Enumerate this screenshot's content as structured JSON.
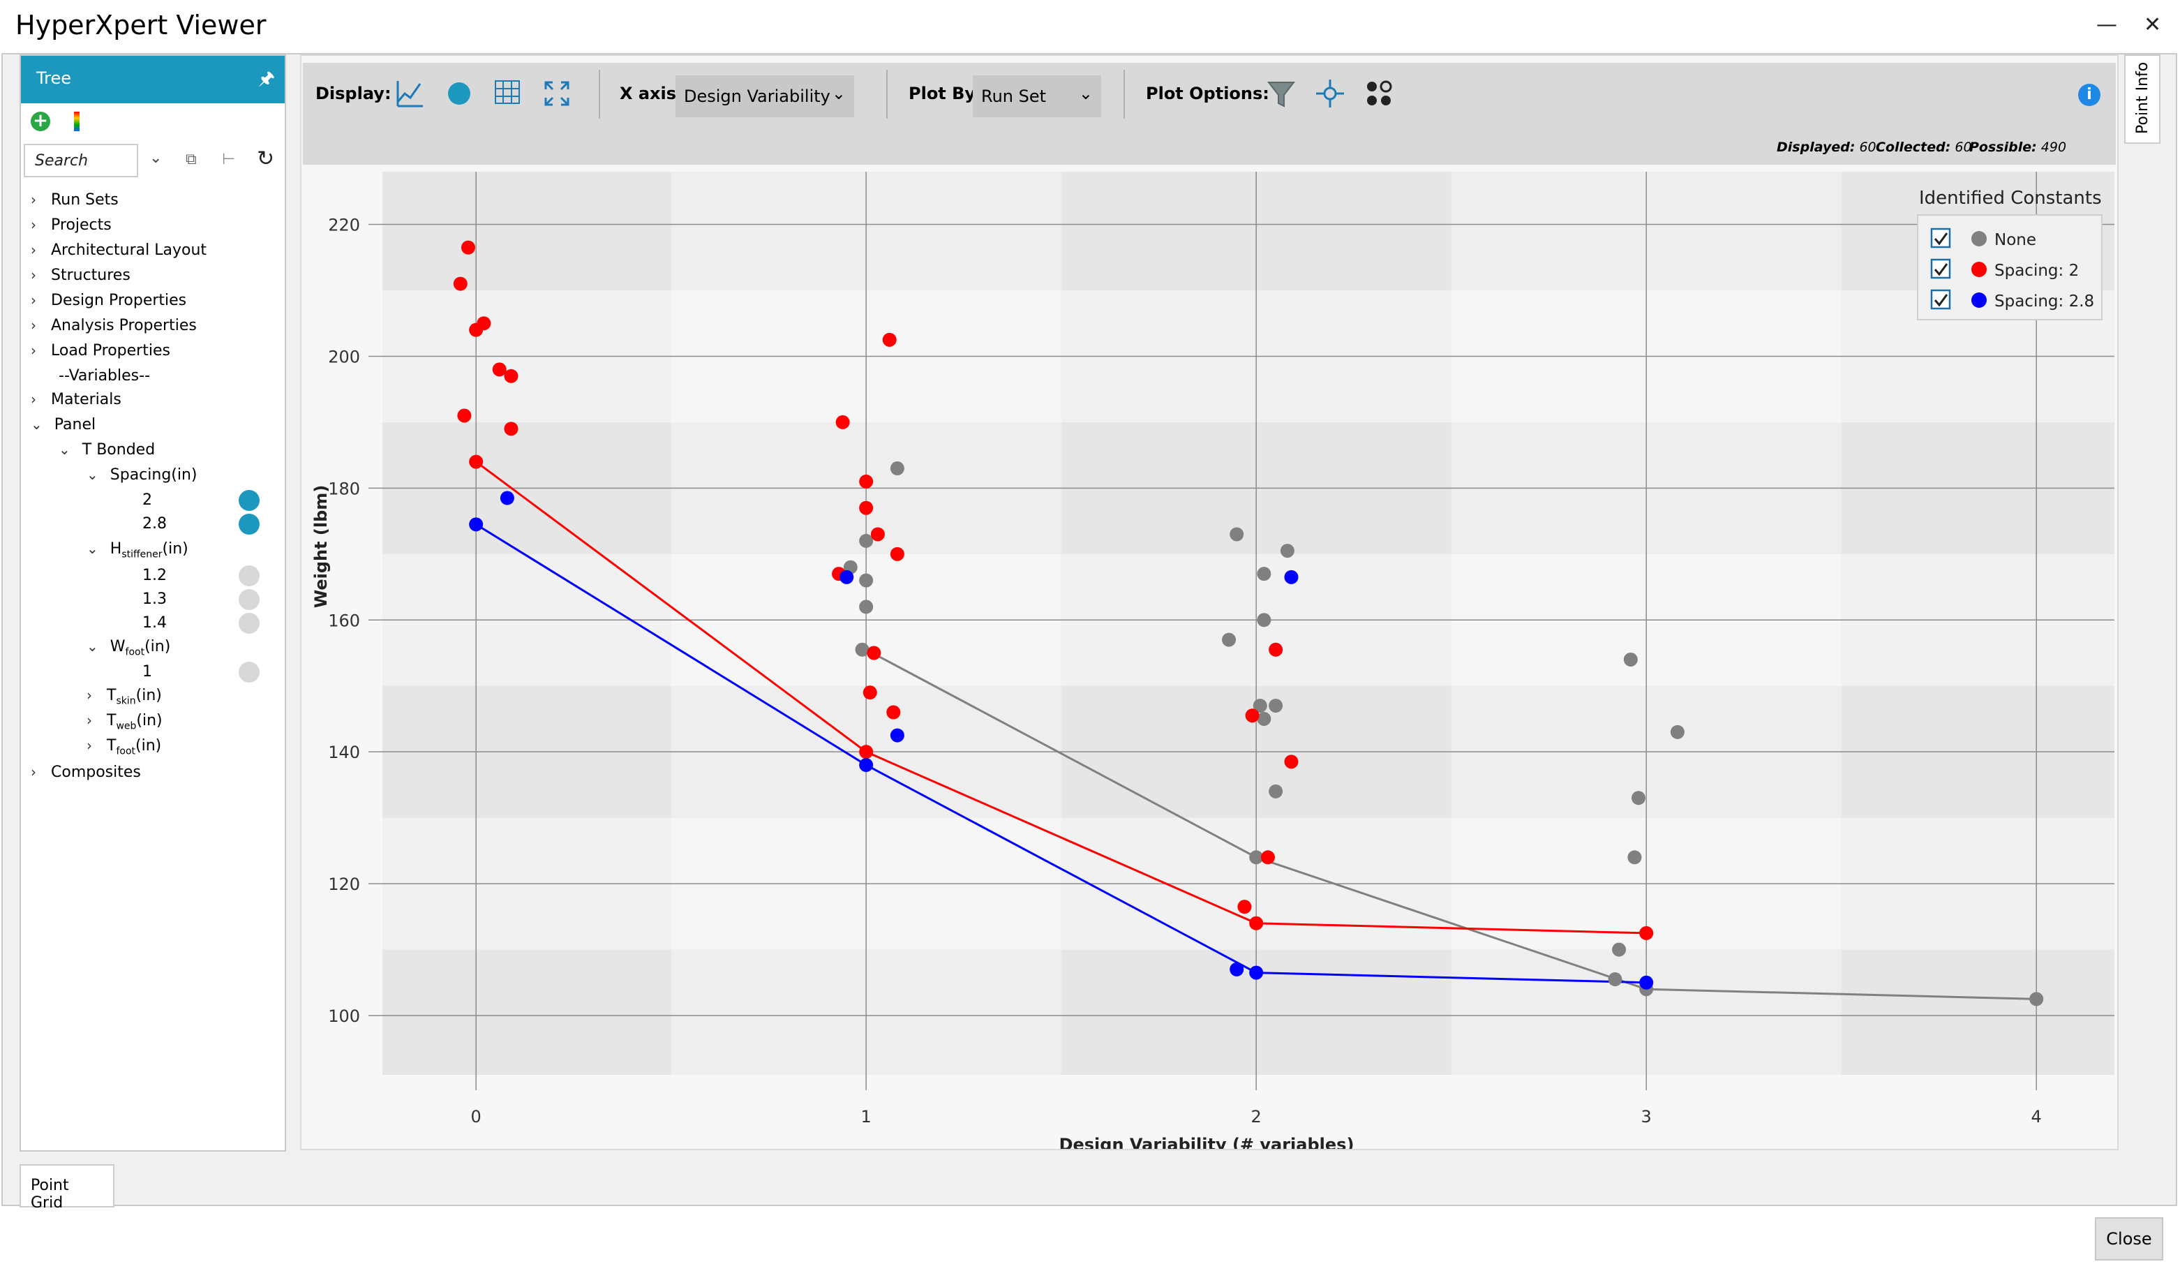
{
  "window": {
    "title": "HyperXpert Viewer",
    "minimize_icon": "minimize-icon",
    "close_icon": "close-x-icon"
  },
  "tree": {
    "title": "Tree",
    "search_placeholder": "Search",
    "items": [
      {
        "label": "Run Sets"
      },
      {
        "label": "Projects"
      },
      {
        "label": "Architectural Layout"
      },
      {
        "label": "Structures"
      },
      {
        "label": "Design Properties"
      },
      {
        "label": "Analysis Properties"
      },
      {
        "label": "Load Properties"
      },
      {
        "label": "--Variables--"
      },
      {
        "label": "Materials"
      },
      {
        "label": "Panel"
      },
      {
        "label": "T Bonded"
      },
      {
        "label": "Spacing(in)"
      },
      {
        "label": "2"
      },
      {
        "label": "2.8"
      },
      {
        "label": "H",
        "sub": "stiffener",
        "suffix": "(in)"
      },
      {
        "label": "1.2"
      },
      {
        "label": "1.3"
      },
      {
        "label": "1.4"
      },
      {
        "label": "W",
        "sub": "foot",
        "suffix": "(in)"
      },
      {
        "label": "1"
      },
      {
        "label": "T",
        "sub": "skin",
        "suffix": "(in)"
      },
      {
        "label": "T",
        "sub": "web",
        "suffix": "(in)"
      },
      {
        "label": "T",
        "sub": "foot",
        "suffix": "(in)"
      },
      {
        "label": "Composites"
      }
    ],
    "dot_colors": {
      "selected": "#1c98bf",
      "unselected": "#d8d8d8"
    }
  },
  "toolbar": {
    "display_label": "Display:",
    "x_axis_label": "X axis:",
    "x_axis_value": "Design Variability",
    "plot_by_label": "Plot By:",
    "plot_by_value": "Run Set",
    "plot_options_label": "Plot Options:",
    "displayed_label": "Displayed:",
    "displayed_value": "60",
    "collected_label": "Collected:",
    "collected_value": "60",
    "possible_label": "Possible:",
    "possible_value": "490"
  },
  "legend": {
    "title": "Identified Constants",
    "entries": [
      {
        "label": "None",
        "color": "#808080"
      },
      {
        "label": "Spacing: 2",
        "color": "#ff0000"
      },
      {
        "label": "Spacing: 2.8",
        "color": "#0000ff"
      }
    ]
  },
  "chart_data": {
    "type": "scatter",
    "xlabel": "Design Variability (# variables)",
    "ylabel": "Weight (lbm)",
    "xlim": [
      -0.24,
      4.2
    ],
    "ylim": [
      91,
      228
    ],
    "xticks": [
      0,
      1,
      2,
      3,
      4
    ],
    "yticks": [
      100,
      120,
      140,
      160,
      180,
      200,
      220
    ],
    "legend_position": "top-right",
    "series": [
      {
        "name": "None",
        "color": "#808080",
        "points": [
          [
            0.96,
            168
          ],
          [
            1.0,
            172
          ],
          [
            1.0,
            166
          ],
          [
            1.0,
            162
          ],
          [
            1.08,
            183
          ],
          [
            0.99,
            155.5
          ],
          [
            1.93,
            157
          ],
          [
            1.95,
            173
          ],
          [
            2.02,
            167
          ],
          [
            2.02,
            160
          ],
          [
            2.08,
            170.5
          ],
          [
            2.01,
            147
          ],
          [
            2.02,
            145
          ],
          [
            2.05,
            147
          ],
          [
            2.05,
            134
          ],
          [
            2.0,
            124
          ],
          [
            2.96,
            154
          ],
          [
            2.98,
            133
          ],
          [
            3.08,
            143
          ],
          [
            2.97,
            124
          ],
          [
            2.93,
            110
          ],
          [
            2.92,
            105.5
          ],
          [
            3.0,
            104
          ],
          [
            4.0,
            102.5
          ]
        ],
        "frontier": [
          [
            1.0,
            155.5
          ],
          [
            2.0,
            124
          ],
          [
            3.0,
            104
          ],
          [
            4.0,
            102.5
          ]
        ]
      },
      {
        "name": "Spacing: 2",
        "color": "#ff0000",
        "points": [
          [
            -0.02,
            216.5
          ],
          [
            -0.04,
            211
          ],
          [
            0.02,
            205
          ],
          [
            0.0,
            204
          ],
          [
            0.06,
            198
          ],
          [
            0.09,
            197
          ],
          [
            -0.03,
            191
          ],
          [
            0.09,
            189
          ],
          [
            0.0,
            184
          ],
          [
            1.06,
            202.5
          ],
          [
            0.94,
            190
          ],
          [
            1.0,
            181
          ],
          [
            1.0,
            177
          ],
          [
            1.03,
            173
          ],
          [
            1.08,
            170
          ],
          [
            0.93,
            167
          ],
          [
            1.02,
            155
          ],
          [
            1.01,
            149
          ],
          [
            1.07,
            146
          ],
          [
            1.0,
            140
          ],
          [
            2.05,
            155.5
          ],
          [
            1.99,
            145.5
          ],
          [
            2.09,
            138.5
          ],
          [
            2.03,
            124
          ],
          [
            1.97,
            116.5
          ],
          [
            2.0,
            114
          ],
          [
            3.0,
            112.5
          ]
        ],
        "frontier": [
          [
            0.0,
            184
          ],
          [
            1.0,
            140
          ],
          [
            2.0,
            114
          ],
          [
            3.0,
            112.5
          ]
        ]
      },
      {
        "name": "Spacing: 2.8",
        "color": "#0000ff",
        "points": [
          [
            0.08,
            178.5
          ],
          [
            0.0,
            174.5
          ],
          [
            0.95,
            166.5
          ],
          [
            1.08,
            142.5
          ],
          [
            1.0,
            138
          ],
          [
            2.09,
            166.5
          ],
          [
            1.95,
            107
          ],
          [
            2.0,
            106.5
          ],
          [
            3.0,
            105
          ]
        ],
        "frontier": [
          [
            0.0,
            174.5
          ],
          [
            1.0,
            138
          ],
          [
            2.0,
            106.5
          ],
          [
            3.0,
            105
          ]
        ]
      }
    ]
  },
  "side_tab": {
    "label": "Point Info"
  },
  "bottom": {
    "point_grid_label": "Point Grid",
    "close_label": "Close"
  }
}
